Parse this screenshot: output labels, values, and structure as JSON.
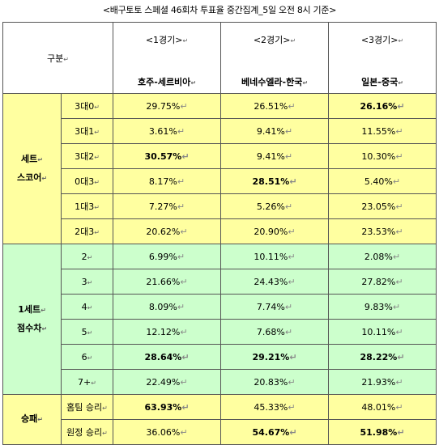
{
  "title": "<배구토토 스페셜 46회차 투표율 중간집계_5일 오전 8시 기준>",
  "header": {
    "label": "구분",
    "games": [
      {
        "game": "<1경기>",
        "teams": "호주-세르비아"
      },
      {
        "game": "<2경기>",
        "teams": "베네수엘라-한국"
      },
      {
        "game": "<3경기>",
        "teams": "일본-중국"
      }
    ]
  },
  "set_score": {
    "label_line1": "세트",
    "label_line2": "스코어",
    "rows": [
      {
        "label": "3대0",
        "v": [
          "29.75%",
          "26.51%",
          "26.16%"
        ],
        "bold": [
          false,
          false,
          true
        ]
      },
      {
        "label": "3대1",
        "v": [
          "3.61%",
          "9.41%",
          "11.55%"
        ],
        "bold": [
          false,
          false,
          false
        ]
      },
      {
        "label": "3대2",
        "v": [
          "30.57%",
          "9.41%",
          "10.30%"
        ],
        "bold": [
          true,
          false,
          false
        ]
      },
      {
        "label": "0대3",
        "v": [
          "8.17%",
          "28.51%",
          "5.40%"
        ],
        "bold": [
          false,
          true,
          false
        ]
      },
      {
        "label": "1대3",
        "v": [
          "7.27%",
          "5.26%",
          "23.05%"
        ],
        "bold": [
          false,
          false,
          false
        ]
      },
      {
        "label": "2대3",
        "v": [
          "20.62%",
          "20.90%",
          "23.53%"
        ],
        "bold": [
          false,
          false,
          false
        ]
      }
    ]
  },
  "point_diff": {
    "label_line1": "1세트",
    "label_line2": "점수차",
    "rows": [
      {
        "label": "2",
        "v": [
          "6.99%",
          "10.11%",
          "2.08%"
        ],
        "bold": [
          false,
          false,
          false
        ]
      },
      {
        "label": "3",
        "v": [
          "21.66%",
          "24.43%",
          "27.82%"
        ],
        "bold": [
          false,
          false,
          false
        ]
      },
      {
        "label": "4",
        "v": [
          "8.09%",
          "7.74%",
          "9.83%"
        ],
        "bold": [
          false,
          false,
          false
        ]
      },
      {
        "label": "5",
        "v": [
          "12.12%",
          "7.68%",
          "10.11%"
        ],
        "bold": [
          false,
          false,
          false
        ]
      },
      {
        "label": "6",
        "v": [
          "28.64%",
          "29.21%",
          "28.22%"
        ],
        "bold": [
          true,
          true,
          true
        ]
      },
      {
        "label": "7+",
        "v": [
          "22.49%",
          "20.83%",
          "21.93%"
        ],
        "bold": [
          false,
          false,
          false
        ]
      }
    ]
  },
  "win_loss": {
    "label": "승패",
    "rows": [
      {
        "label": "홈팀 승리",
        "v": [
          "63.93%",
          "45.33%",
          "48.01%"
        ],
        "bold": [
          true,
          false,
          false
        ]
      },
      {
        "label": "원정 승리",
        "v": [
          "36.06%",
          "54.67%",
          "51.98%"
        ],
        "bold": [
          false,
          true,
          true
        ]
      }
    ]
  }
}
